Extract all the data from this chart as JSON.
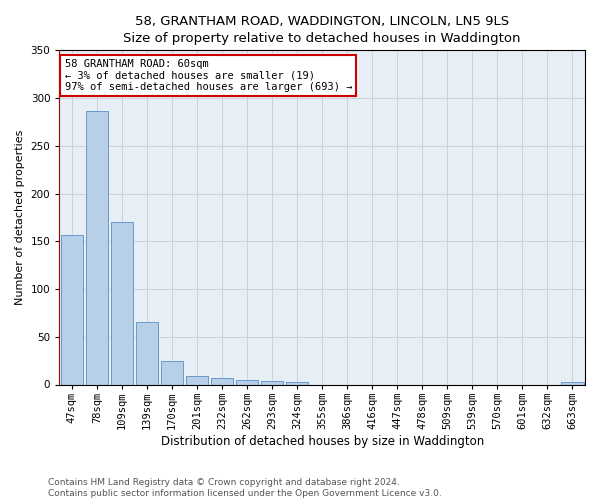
{
  "title": "58, GRANTHAM ROAD, WADDINGTON, LINCOLN, LN5 9LS",
  "subtitle": "Size of property relative to detached houses in Waddington",
  "xlabel": "Distribution of detached houses by size in Waddington",
  "ylabel": "Number of detached properties",
  "categories": [
    "47sqm",
    "78sqm",
    "109sqm",
    "139sqm",
    "170sqm",
    "201sqm",
    "232sqm",
    "262sqm",
    "293sqm",
    "324sqm",
    "355sqm",
    "386sqm",
    "416sqm",
    "447sqm",
    "478sqm",
    "509sqm",
    "539sqm",
    "570sqm",
    "601sqm",
    "632sqm",
    "663sqm"
  ],
  "values": [
    157,
    286,
    170,
    65,
    25,
    9,
    7,
    5,
    4,
    3,
    0,
    0,
    0,
    0,
    0,
    0,
    0,
    0,
    0,
    0,
    3
  ],
  "bar_color": "#b8cfe8",
  "bar_edge_color": "#6699cc",
  "annotation_box_text": "58 GRANTHAM ROAD: 60sqm\n← 3% of detached houses are smaller (19)\n97% of semi-detached houses are larger (693) →",
  "annotation_line_color": "#cc0000",
  "annotation_box_edge_color": "#cc0000",
  "ylim": [
    0,
    350
  ],
  "yticks": [
    0,
    50,
    100,
    150,
    200,
    250,
    300,
    350
  ],
  "grid_color": "#cccccc",
  "plot_bg_color": "#e8eef5",
  "footer_text": "Contains HM Land Registry data © Crown copyright and database right 2024.\nContains public sector information licensed under the Open Government Licence v3.0.",
  "title_fontsize": 9.5,
  "subtitle_fontsize": 9,
  "xlabel_fontsize": 8.5,
  "ylabel_fontsize": 8,
  "tick_fontsize": 7.5,
  "annotation_fontsize": 7.5,
  "footer_fontsize": 6.5
}
